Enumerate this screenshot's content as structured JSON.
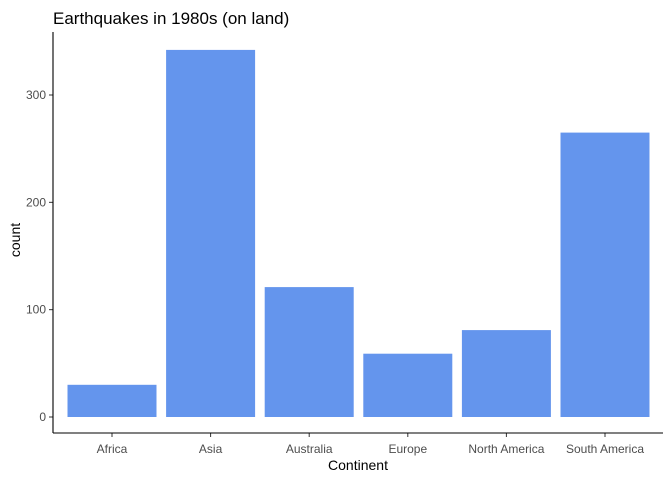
{
  "chart_data": {
    "type": "bar",
    "title": "Earthquakes in 1980s (on land)",
    "xlabel": "Continent",
    "ylabel": "count",
    "categories": [
      "Africa",
      "Asia",
      "Australia",
      "Europe",
      "North America",
      "South America"
    ],
    "values": [
      30,
      342,
      121,
      59,
      81,
      265
    ],
    "ylim": [
      0,
      360
    ],
    "yticks": [
      0,
      100,
      200,
      300
    ],
    "ytick_labels": [
      "0",
      "100",
      "200",
      "300"
    ],
    "grid": false,
    "bar_color": "#6495ED",
    "axis_color": "#000000"
  }
}
